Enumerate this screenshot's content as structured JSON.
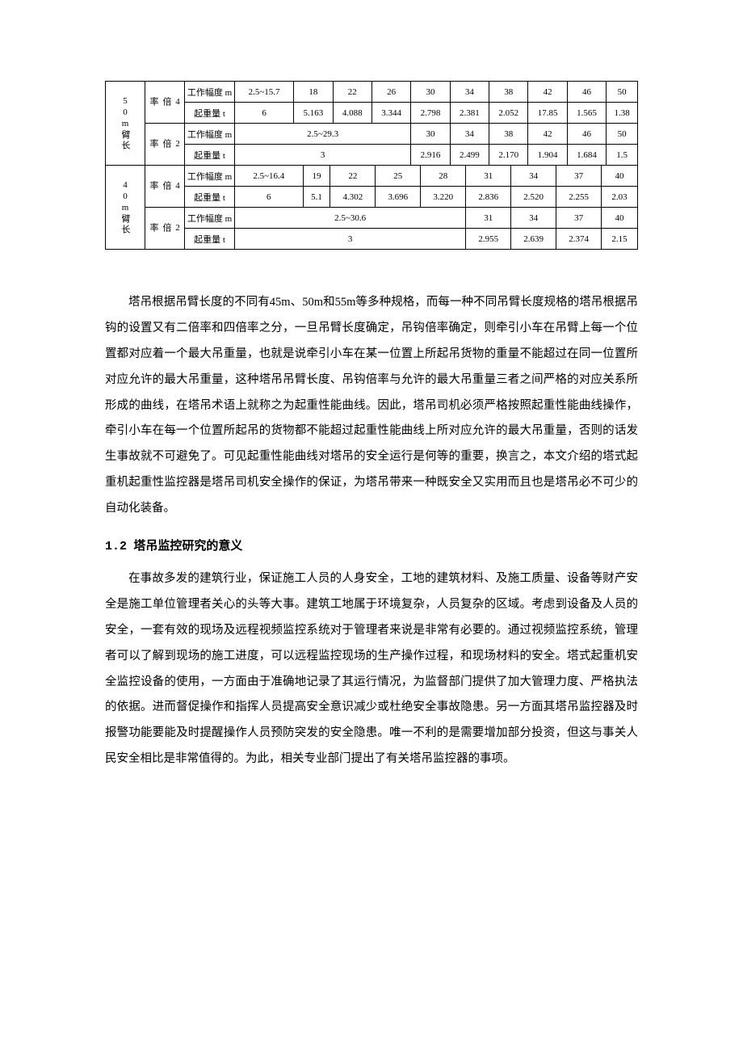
{
  "section": {
    "number": "1.2",
    "title": "塔吊监控研究的意义"
  },
  "para1": "塔吊根据吊臂长度的不同有45m、50m和55m等多种规格，而每一种不同吊臂长度规格的塔吊根据吊钩的设置又有二倍率和四倍率之分，一旦吊臂长度确定，吊钩倍率确定，则牵引小车在吊臂上每一个位置都对应着一个最大吊重量，也就是说牵引小车在某一位置上所起吊货物的重量不能超过在同一位置所对应允许的最大吊重量，这种塔吊吊臂长度、吊钩倍率与允许的最大吊重量三者之间严格的对应关系所形成的曲线，在塔吊术语上就称之为起重性能曲线。因此，塔吊司机必须严格按照起重性能曲线操作，牵引小车在每一个位置所起吊的货物都不能超过起重性能曲线上所对应允许的最大吊重量，否则的话发生事故就不可避免了。可见起重性能曲线对塔吊的安全运行是何等的重要，换言之，本文介绍的塔式起重机起重性监控器是塔吊司机安全操作的保证，为塔吊带来一种既安全又实用而且也是塔吊必不可少的自动化装备。",
  "para2": "在事故多发的建筑行业，保证施工人员的人身安全，工地的建筑材料、及施工质量、设备等财产安全是施工单位管理者关心的头等大事。建筑工地属于环境复杂，人员复杂的区域。考虑到设备及人员的安全，一套有效的现场及远程视频监控系统对于管理者来说是非常有必要的。通过视频监控系统，管理者可以了解到现场的施工进度，可以远程监控现场的生产操作过程，和现场材料的安全。塔式起重机安全监控设备的使用，一方面由于准确地记录了其运行情况，为监督部门提供了加大管理力度、严格执法的依据。进而督促操作和指挥人员提高安全意识减少或杜绝安全事故隐患。另一方面其塔吊监控器及时报警功能要能及时提醒操作人员预防突发的安全隐患。唯一不利的是需要增加部分投资，但这与事关人民安全相比是非常值得的。为此，相关专业部门提出了有关塔吊监控器的事项。",
  "labels": {
    "arm50": "50m臂长",
    "arm40": "40m臂长",
    "rate4": "4倍率",
    "rate2": "2倍率",
    "range_m": "工作幅度 m",
    "weight_t": "起重量 t"
  },
  "table50": {
    "r4_range": [
      "2.5~15.7",
      "18",
      "22",
      "26",
      "30",
      "34",
      "38",
      "42",
      "46",
      "50"
    ],
    "r4_weight": [
      "6",
      "5.163",
      "4.088",
      "3.344",
      "2.798",
      "2.381",
      "2.052",
      "17.85",
      "1.565",
      "1.38"
    ],
    "r2_range_merged": "2.5~29.3",
    "r2_range": [
      "30",
      "34",
      "38",
      "42",
      "46",
      "50"
    ],
    "r2_weight_merged": "3",
    "r2_weight": [
      "2.916",
      "2.499",
      "2.170",
      "1.904",
      "1.684",
      "1.5"
    ]
  },
  "table40": {
    "r4_range": [
      "2.5~16.4",
      "19",
      "22",
      "25",
      "28",
      "31",
      "34",
      "37",
      "40"
    ],
    "r4_weight": [
      "6",
      "5.1",
      "4.302",
      "3.696",
      "3.220",
      "2.836",
      "2.520",
      "2.255",
      "2.03"
    ],
    "r2_range_merged": "2.5~30.6",
    "r2_range": [
      "31",
      "34",
      "37",
      "40"
    ],
    "r2_weight_merged": "3",
    "r2_weight": [
      "2.955",
      "2.639",
      "2.374",
      "2.15"
    ]
  }
}
